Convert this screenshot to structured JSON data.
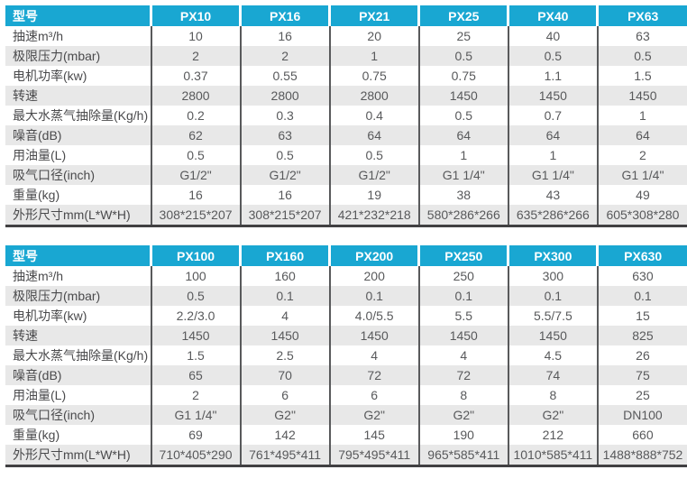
{
  "colors": {
    "header_bg": "#19a7d2",
    "header_text": "#ffffff",
    "alt_row_bg": "#e8e8e8",
    "column_rule": "#58595b",
    "bottom_border": "#414042",
    "label_text": "#4a4a4c",
    "value_text": "#58595b"
  },
  "tables": [
    {
      "header_label": "型号",
      "columns": [
        "PX10",
        "PX16",
        "PX21",
        "PX25",
        "PX40",
        "PX63"
      ],
      "rows": [
        {
          "label": "抽速m³/h",
          "values": [
            "10",
            "16",
            "20",
            "25",
            "40",
            "63"
          ]
        },
        {
          "label": "极限压力(mbar)",
          "values": [
            "2",
            "2",
            "1",
            "0.5",
            "0.5",
            "0.5"
          ]
        },
        {
          "label": "电机功率(kw)",
          "values": [
            "0.37",
            "0.55",
            "0.75",
            "0.75",
            "1.1",
            "1.5"
          ]
        },
        {
          "label": "转速",
          "values": [
            "2800",
            "2800",
            "2800",
            "1450",
            "1450",
            "1450"
          ]
        },
        {
          "label": "最大水蒸气抽除量(Kg/h)",
          "values": [
            "0.2",
            "0.3",
            "0.4",
            "0.5",
            "0.7",
            "1"
          ]
        },
        {
          "label": "噪音(dB)",
          "values": [
            "62",
            "63",
            "64",
            "64",
            "64",
            "64"
          ]
        },
        {
          "label": "用油量(L)",
          "values": [
            "0.5",
            "0.5",
            "0.5",
            "1",
            "1",
            "2"
          ]
        },
        {
          "label": "吸气口径(inch)",
          "values": [
            "G1/2\"",
            "G1/2\"",
            "G1/2\"",
            "G1 1/4\"",
            "G1 1/4\"",
            "G1 1/4\""
          ]
        },
        {
          "label": "重量(kg)",
          "values": [
            "16",
            "16",
            "19",
            "38",
            "43",
            "49"
          ]
        },
        {
          "label": "外形尺寸mm(L*W*H)",
          "values": [
            "308*215*207",
            "308*215*207",
            "421*232*218",
            "580*286*266",
            "635*286*266",
            "605*308*280"
          ]
        }
      ]
    },
    {
      "header_label": "型号",
      "columns": [
        "PX100",
        "PX160",
        "PX200",
        "PX250",
        "PX300",
        "PX630"
      ],
      "rows": [
        {
          "label": "抽速m³/h",
          "values": [
            "100",
            "160",
            "200",
            "250",
            "300",
            "630"
          ]
        },
        {
          "label": "极限压力(mbar)",
          "values": [
            "0.5",
            "0.1",
            "0.1",
            "0.1",
            "0.1",
            "0.1"
          ]
        },
        {
          "label": "电机功率(kw)",
          "values": [
            "2.2/3.0",
            "4",
            "4.0/5.5",
            "5.5",
            "5.5/7.5",
            "15"
          ]
        },
        {
          "label": "转速",
          "values": [
            "1450",
            "1450",
            "1450",
            "1450",
            "1450",
            "825"
          ]
        },
        {
          "label": "最大水蒸气抽除量(Kg/h)",
          "values": [
            "1.5",
            "2.5",
            "4",
            "4",
            "4.5",
            "26"
          ]
        },
        {
          "label": "噪音(dB)",
          "values": [
            "65",
            "70",
            "72",
            "72",
            "74",
            "75"
          ]
        },
        {
          "label": "用油量(L)",
          "values": [
            "2",
            "6",
            "6",
            "8",
            "8",
            "25"
          ]
        },
        {
          "label": "吸气口径(inch)",
          "values": [
            "G1 1/4\"",
            "G2\"",
            "G2\"",
            "G2\"",
            "G2\"",
            "DN100"
          ]
        },
        {
          "label": "重量(kg)",
          "values": [
            "69",
            "142",
            "145",
            "190",
            "212",
            "660"
          ]
        },
        {
          "label": "外形尺寸mm(L*W*H)",
          "values": [
            "710*405*290",
            "761*495*411",
            "795*495*411",
            "965*585*411",
            "1010*585*411",
            "1488*888*752"
          ]
        }
      ]
    }
  ]
}
